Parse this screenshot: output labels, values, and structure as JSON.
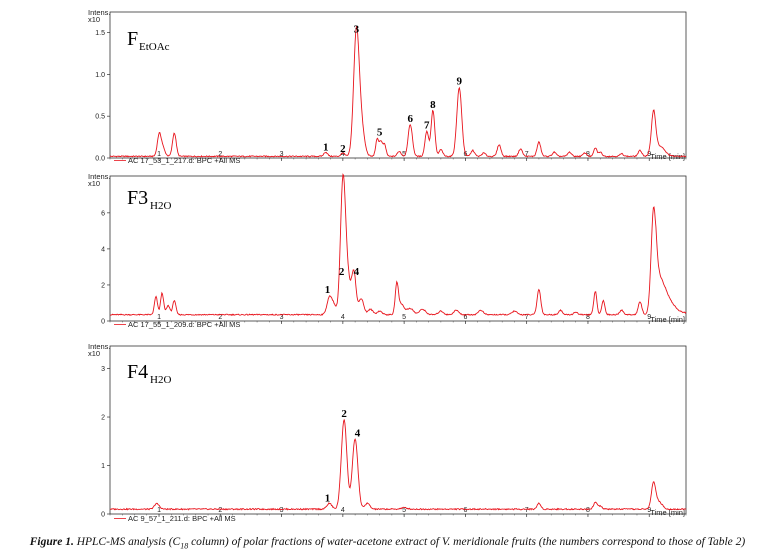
{
  "chart_data": [
    {
      "type": "line",
      "panel_name": "F",
      "panel_sub": "EtOAc",
      "y_label": "Intens.",
      "y_scale": "x10",
      "x_label": "Time [min]",
      "trace_label": "AC 17_53_1_217.d: BPC +All MS",
      "xlim": [
        0.2,
        9.6
      ],
      "ylim": [
        0,
        1.65
      ],
      "y_ticks": [
        "0.0",
        "0.5",
        "1.0",
        "1.5"
      ],
      "y_tick_values": [
        0,
        0.5,
        1.0,
        1.5
      ],
      "x_ticks": [
        "1",
        "2",
        "3",
        "4",
        "5",
        "6",
        "7",
        "8",
        "9"
      ],
      "baseline": 0.02,
      "peaks": [
        {
          "t": 1.0,
          "h": 0.22,
          "w": 0.03
        },
        {
          "t": 1.05,
          "h": 0.12,
          "w": 0.04
        },
        {
          "t": 1.25,
          "h": 0.28,
          "w": 0.03
        },
        {
          "t": 3.72,
          "h": 0.05,
          "w": 0.03
        },
        {
          "t": 4.0,
          "h": 0.04,
          "w": 0.03
        },
        {
          "t": 4.22,
          "h": 1.45,
          "w": 0.045
        },
        {
          "t": 4.3,
          "h": 0.35,
          "w": 0.05
        },
        {
          "t": 4.56,
          "h": 0.2,
          "w": 0.025
        },
        {
          "t": 4.62,
          "h": 0.17,
          "w": 0.025
        },
        {
          "t": 4.68,
          "h": 0.14,
          "w": 0.025
        },
        {
          "t": 4.92,
          "h": 0.06,
          "w": 0.03
        },
        {
          "t": 5.1,
          "h": 0.38,
          "w": 0.035
        },
        {
          "t": 5.37,
          "h": 0.3,
          "w": 0.03
        },
        {
          "t": 5.47,
          "h": 0.55,
          "w": 0.03
        },
        {
          "t": 5.6,
          "h": 0.08,
          "w": 0.03
        },
        {
          "t": 5.9,
          "h": 0.82,
          "w": 0.04
        },
        {
          "t": 6.12,
          "h": 0.07,
          "w": 0.03
        },
        {
          "t": 6.3,
          "h": 0.04,
          "w": 0.03
        },
        {
          "t": 6.55,
          "h": 0.14,
          "w": 0.03
        },
        {
          "t": 6.9,
          "h": 0.09,
          "w": 0.03
        },
        {
          "t": 7.2,
          "h": 0.17,
          "w": 0.03
        },
        {
          "t": 7.45,
          "h": 0.05,
          "w": 0.03
        },
        {
          "t": 7.7,
          "h": 0.05,
          "w": 0.03
        },
        {
          "t": 7.95,
          "h": 0.04,
          "w": 0.03
        },
        {
          "t": 8.12,
          "h": 0.1,
          "w": 0.025
        },
        {
          "t": 8.2,
          "h": 0.05,
          "w": 0.03
        },
        {
          "t": 8.55,
          "h": 0.03,
          "w": 0.03
        },
        {
          "t": 8.85,
          "h": 0.07,
          "w": 0.03
        },
        {
          "t": 9.07,
          "h": 0.5,
          "w": 0.035
        },
        {
          "t": 9.17,
          "h": 0.12,
          "w": 0.08
        }
      ],
      "peak_labels": [
        {
          "label": "1",
          "t": 3.72,
          "v": 0.09
        },
        {
          "label": "2",
          "t": 4.0,
          "v": 0.07
        },
        {
          "label": "3",
          "t": 4.22,
          "v": 1.5
        },
        {
          "label": "5",
          "t": 4.6,
          "v": 0.27
        },
        {
          "label": "6",
          "t": 5.1,
          "v": 0.43
        },
        {
          "label": "7",
          "t": 5.37,
          "v": 0.35
        },
        {
          "label": "8",
          "t": 5.47,
          "v": 0.6
        },
        {
          "label": "9",
          "t": 5.9,
          "v": 0.88
        }
      ]
    },
    {
      "type": "line",
      "panel_name": "F3",
      "panel_sub": "H2O",
      "y_label": "Intens.",
      "y_scale": "x10",
      "x_label": "Time [min]",
      "trace_label": "AC 17_55_1_209.d: BPC +All MS",
      "xlim": [
        0.2,
        9.6
      ],
      "ylim": [
        0,
        7.6
      ],
      "y_ticks": [
        "0",
        "2",
        "4",
        "6"
      ],
      "y_tick_values": [
        0,
        2,
        4,
        6
      ],
      "x_ticks": [
        "1",
        "2",
        "3",
        "4",
        "5",
        "6",
        "7",
        "8",
        "9"
      ],
      "baseline": 0.35,
      "peaks": [
        {
          "t": 0.95,
          "h": 1.0,
          "w": 0.025
        },
        {
          "t": 1.05,
          "h": 1.2,
          "w": 0.025
        },
        {
          "t": 1.15,
          "h": 0.5,
          "w": 0.03
        },
        {
          "t": 1.25,
          "h": 0.8,
          "w": 0.025
        },
        {
          "t": 3.78,
          "h": 0.9,
          "w": 0.04
        },
        {
          "t": 3.85,
          "h": 0.5,
          "w": 0.04
        },
        {
          "t": 4.0,
          "h": 6.9,
          "w": 0.04
        },
        {
          "t": 4.07,
          "h": 2.2,
          "w": 0.05
        },
        {
          "t": 4.18,
          "h": 2.3,
          "w": 0.035
        },
        {
          "t": 4.3,
          "h": 0.9,
          "w": 0.04
        },
        {
          "t": 4.45,
          "h": 0.3,
          "w": 0.04
        },
        {
          "t": 4.6,
          "h": 0.2,
          "w": 0.04
        },
        {
          "t": 4.88,
          "h": 1.6,
          "w": 0.025
        },
        {
          "t": 4.95,
          "h": 0.6,
          "w": 0.05
        },
        {
          "t": 5.1,
          "h": 0.35,
          "w": 0.05
        },
        {
          "t": 5.3,
          "h": 0.3,
          "w": 0.05
        },
        {
          "t": 5.6,
          "h": 0.2,
          "w": 0.04
        },
        {
          "t": 5.85,
          "h": 0.25,
          "w": 0.04
        },
        {
          "t": 6.25,
          "h": 0.25,
          "w": 0.04
        },
        {
          "t": 6.8,
          "h": 0.2,
          "w": 0.04
        },
        {
          "t": 7.2,
          "h": 1.4,
          "w": 0.03
        },
        {
          "t": 7.55,
          "h": 0.25,
          "w": 0.03
        },
        {
          "t": 7.8,
          "h": 0.15,
          "w": 0.03
        },
        {
          "t": 8.12,
          "h": 1.3,
          "w": 0.025
        },
        {
          "t": 8.25,
          "h": 0.8,
          "w": 0.025
        },
        {
          "t": 8.55,
          "h": 0.25,
          "w": 0.03
        },
        {
          "t": 8.85,
          "h": 0.7,
          "w": 0.03
        },
        {
          "t": 9.07,
          "h": 5.3,
          "w": 0.04
        },
        {
          "t": 9.15,
          "h": 1.6,
          "w": 0.06
        },
        {
          "t": 9.25,
          "h": 0.8,
          "w": 0.06
        },
        {
          "t": 9.35,
          "h": 0.45,
          "w": 0.08
        }
      ],
      "peak_labels": [
        {
          "label": "1",
          "t": 3.75,
          "v": 1.55
        },
        {
          "label": "2",
          "t": 3.98,
          "v": 2.55
        },
        {
          "label": "4",
          "t": 4.22,
          "v": 2.55
        }
      ]
    },
    {
      "type": "line",
      "panel_name": "F4",
      "panel_sub": "H2O",
      "y_label": "Intens.",
      "y_scale": "x10",
      "x_label": "Time [min]",
      "trace_label": "AC 9_57_1_211.d: BPC +All MS",
      "xlim": [
        0.2,
        9.6
      ],
      "ylim": [
        0,
        3.3
      ],
      "y_ticks": [
        "0",
        "1",
        "2",
        "3"
      ],
      "y_tick_values": [
        0,
        1,
        2,
        3
      ],
      "x_ticks": [
        "1",
        "2",
        "3",
        "4",
        "5",
        "6",
        "7",
        "8",
        "9"
      ],
      "baseline": 0.1,
      "peaks": [
        {
          "t": 0.95,
          "h": 0.1,
          "w": 0.03
        },
        {
          "t": 1.0,
          "h": 0.05,
          "w": 0.03
        },
        {
          "t": 3.78,
          "h": 0.12,
          "w": 0.04
        },
        {
          "t": 4.02,
          "h": 1.85,
          "w": 0.045
        },
        {
          "t": 4.2,
          "h": 1.45,
          "w": 0.045
        },
        {
          "t": 4.4,
          "h": 0.12,
          "w": 0.04
        },
        {
          "t": 5.0,
          "h": 0.03,
          "w": 0.05
        },
        {
          "t": 7.2,
          "h": 0.12,
          "w": 0.03
        },
        {
          "t": 8.12,
          "h": 0.14,
          "w": 0.03
        },
        {
          "t": 8.2,
          "h": 0.06,
          "w": 0.03
        },
        {
          "t": 9.07,
          "h": 0.5,
          "w": 0.035
        },
        {
          "t": 9.15,
          "h": 0.15,
          "w": 0.06
        }
      ],
      "peak_labels": [
        {
          "label": "1",
          "t": 3.75,
          "v": 0.26
        },
        {
          "label": "2",
          "t": 4.02,
          "v": 2.0
        },
        {
          "label": "4",
          "t": 4.24,
          "v": 1.6
        }
      ]
    }
  ],
  "caption": {
    "lead": "Figure 1.",
    "text_before": " HPLC-MS analysis (C",
    "sub": "18",
    "text_after": " column) of polar fractions of water-acetone extract of V. meridionale fruits (the numbers correspond to those of Table 2)"
  },
  "colors": {
    "trace": "#e8141c",
    "axis": "#333333"
  }
}
